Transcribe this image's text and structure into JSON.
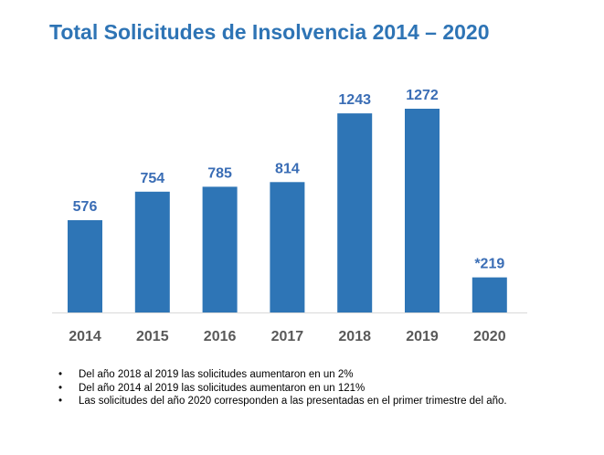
{
  "title": "Total Solicitudes de Insolvencia 2014 – 2020",
  "chart_data": {
    "type": "bar",
    "title": "Total Solicitudes de Insolvencia 2014 – 2020",
    "categories": [
      "2014",
      "2015",
      "2016",
      "2017",
      "2018",
      "2019",
      "2020"
    ],
    "values": [
      576,
      754,
      785,
      814,
      1243,
      1272,
      219
    ],
    "value_labels": [
      "576",
      "754",
      "785",
      "814",
      "1243",
      "1272",
      "*219"
    ],
    "xlabel": "",
    "ylabel": "",
    "ylim": [
      0,
      1272
    ],
    "grid": false,
    "bar_color": "#2e75b6",
    "label_color": "#3a6db5",
    "axis_color": "#d9d9d9"
  },
  "notes": [
    "Del año 2018 al 2019 las solicitudes aumentaron en un 2%",
    "Del año 2014 al 2019 las solicitudes aumentaron en un 121%",
    "Las solicitudes del año 2020 corresponden a las presentadas en el primer trimestre del año."
  ]
}
